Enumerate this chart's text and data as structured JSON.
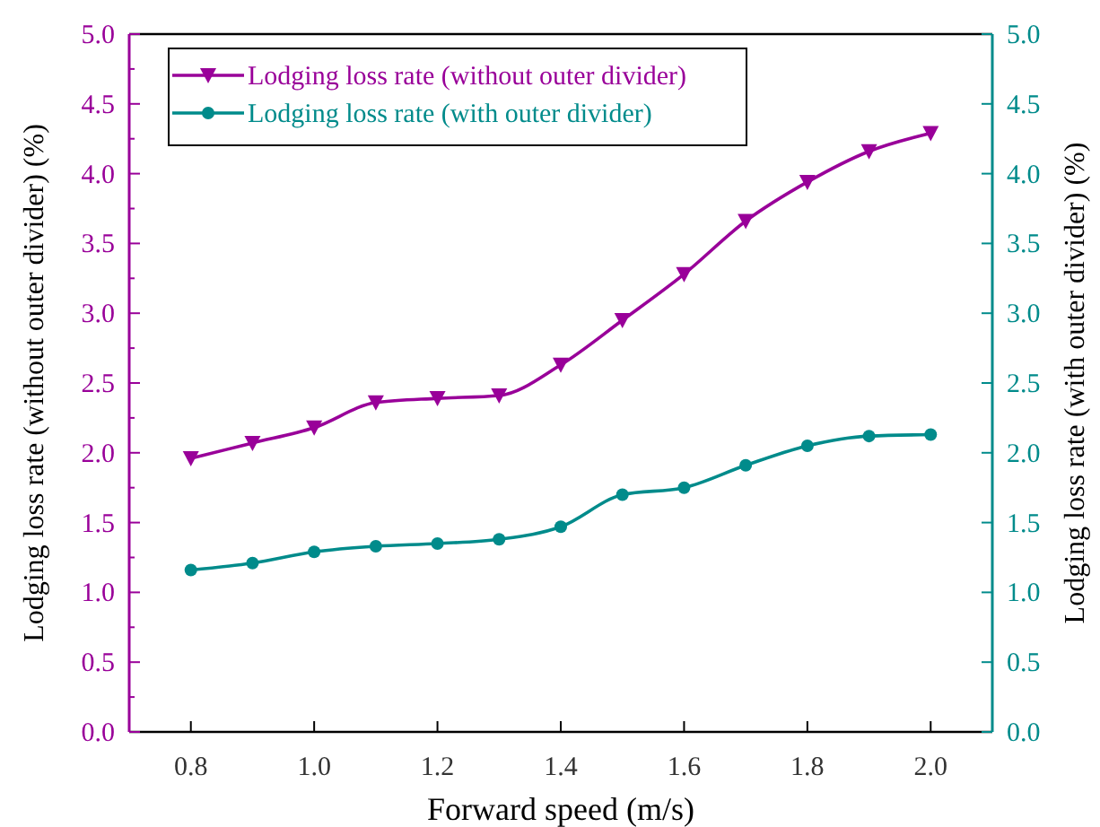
{
  "chart_data": {
    "type": "line",
    "xlabel": "Forward speed (m/s)",
    "ylabel": "Lodging loss rate (without outer divider) (%)",
    "y2label": "Lodging loss rate (with outer divider) (%)",
    "x": [
      0.8,
      0.9,
      1.0,
      1.1,
      1.2,
      1.3,
      1.4,
      1.5,
      1.6,
      1.7,
      1.8,
      1.9,
      2.0
    ],
    "series": [
      {
        "name": "Lodging loss rate (without outer divider)",
        "color": "#990099",
        "marker": "triangle",
        "values": [
          1.96,
          2.07,
          2.18,
          2.36,
          2.39,
          2.41,
          2.63,
          2.95,
          3.28,
          3.66,
          3.94,
          4.16,
          4.29
        ]
      },
      {
        "name": "Lodging loss rate (with outer divider)",
        "color": "#008b8b",
        "marker": "circle",
        "axis": "y2",
        "values": [
          1.16,
          1.21,
          1.29,
          1.33,
          1.35,
          1.38,
          1.47,
          1.7,
          1.75,
          1.91,
          2.05,
          2.12,
          2.13
        ]
      }
    ],
    "xlim": [
      0.7,
      2.1
    ],
    "xticks": [
      0.8,
      {
        "value": 1.0,
        "label": "1.0"
      },
      1.2,
      1.4,
      1.6,
      1.8,
      {
        "value": 2.0,
        "label": "2.0"
      }
    ],
    "ylim": [
      0,
      5
    ],
    "yticks": [
      {
        "value": 0,
        "label": "0.0"
      },
      0.5,
      {
        "value": 1,
        "label": "1.0"
      },
      1.5,
      {
        "value": 2,
        "label": "2.0"
      },
      2.5,
      {
        "value": 3,
        "label": "3.0"
      },
      3.5,
      {
        "value": 4,
        "label": "4.0"
      },
      4.5,
      {
        "value": 5,
        "label": "5.0"
      }
    ],
    "y2lim": [
      0,
      5
    ],
    "y2ticks": [
      {
        "value": 0,
        "label": "0.0"
      },
      0.5,
      {
        "value": 1,
        "label": "1.0"
      },
      1.5,
      {
        "value": 2,
        "label": "2.0"
      },
      2.5,
      {
        "value": 3,
        "label": "3.0"
      },
      3.5,
      {
        "value": 4,
        "label": "4.0"
      },
      4.5,
      {
        "value": 5,
        "label": "5.0"
      }
    ],
    "grid": false,
    "legend": "top left"
  }
}
